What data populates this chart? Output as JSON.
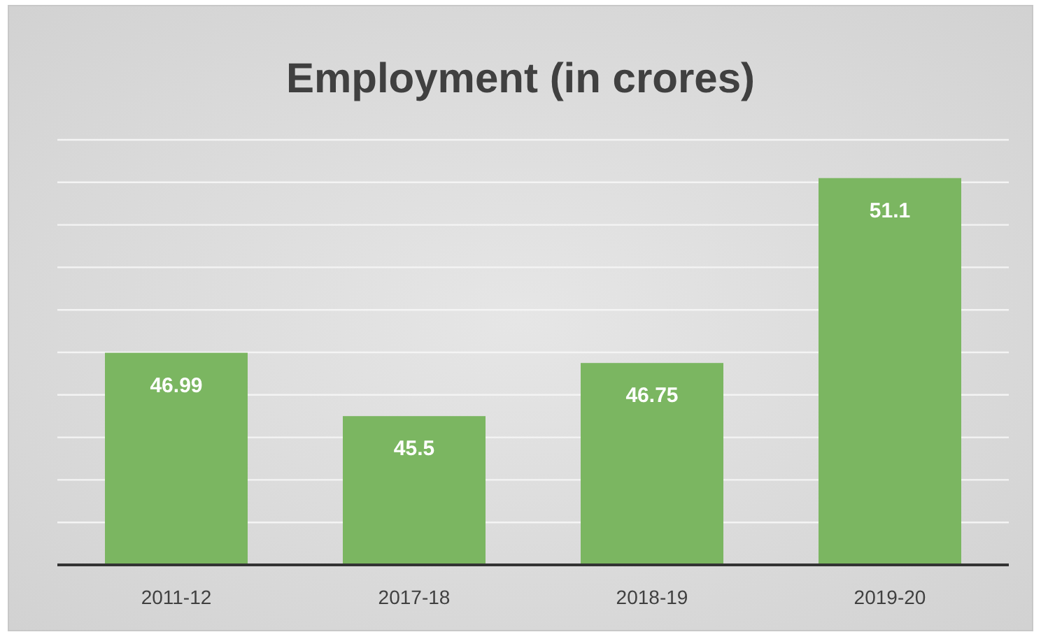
{
  "chart_data": {
    "type": "bar",
    "title": "Employment (in crores)",
    "categories": [
      "2011-12",
      "2017-18",
      "2018-19",
      "2019-20"
    ],
    "values": [
      46.99,
      45.5,
      46.75,
      51.1
    ],
    "color": "#7bb661",
    "ylim": [
      42,
      52
    ],
    "yticks": [
      {
        "value": 42,
        "label": null
      },
      {
        "value": 43,
        "label": null
      },
      {
        "value": 44,
        "label": null
      },
      {
        "value": 45,
        "label": null
      },
      {
        "value": 46,
        "label": null
      },
      {
        "value": 47,
        "label": null
      },
      {
        "value": 48,
        "label": null
      },
      {
        "value": 49,
        "label": null
      },
      {
        "value": 50,
        "label": null
      },
      {
        "value": 51,
        "label": null
      },
      {
        "value": 52,
        "label": null
      }
    ],
    "tick_labels": "x",
    "grid": "y",
    "data_labels": true
  }
}
